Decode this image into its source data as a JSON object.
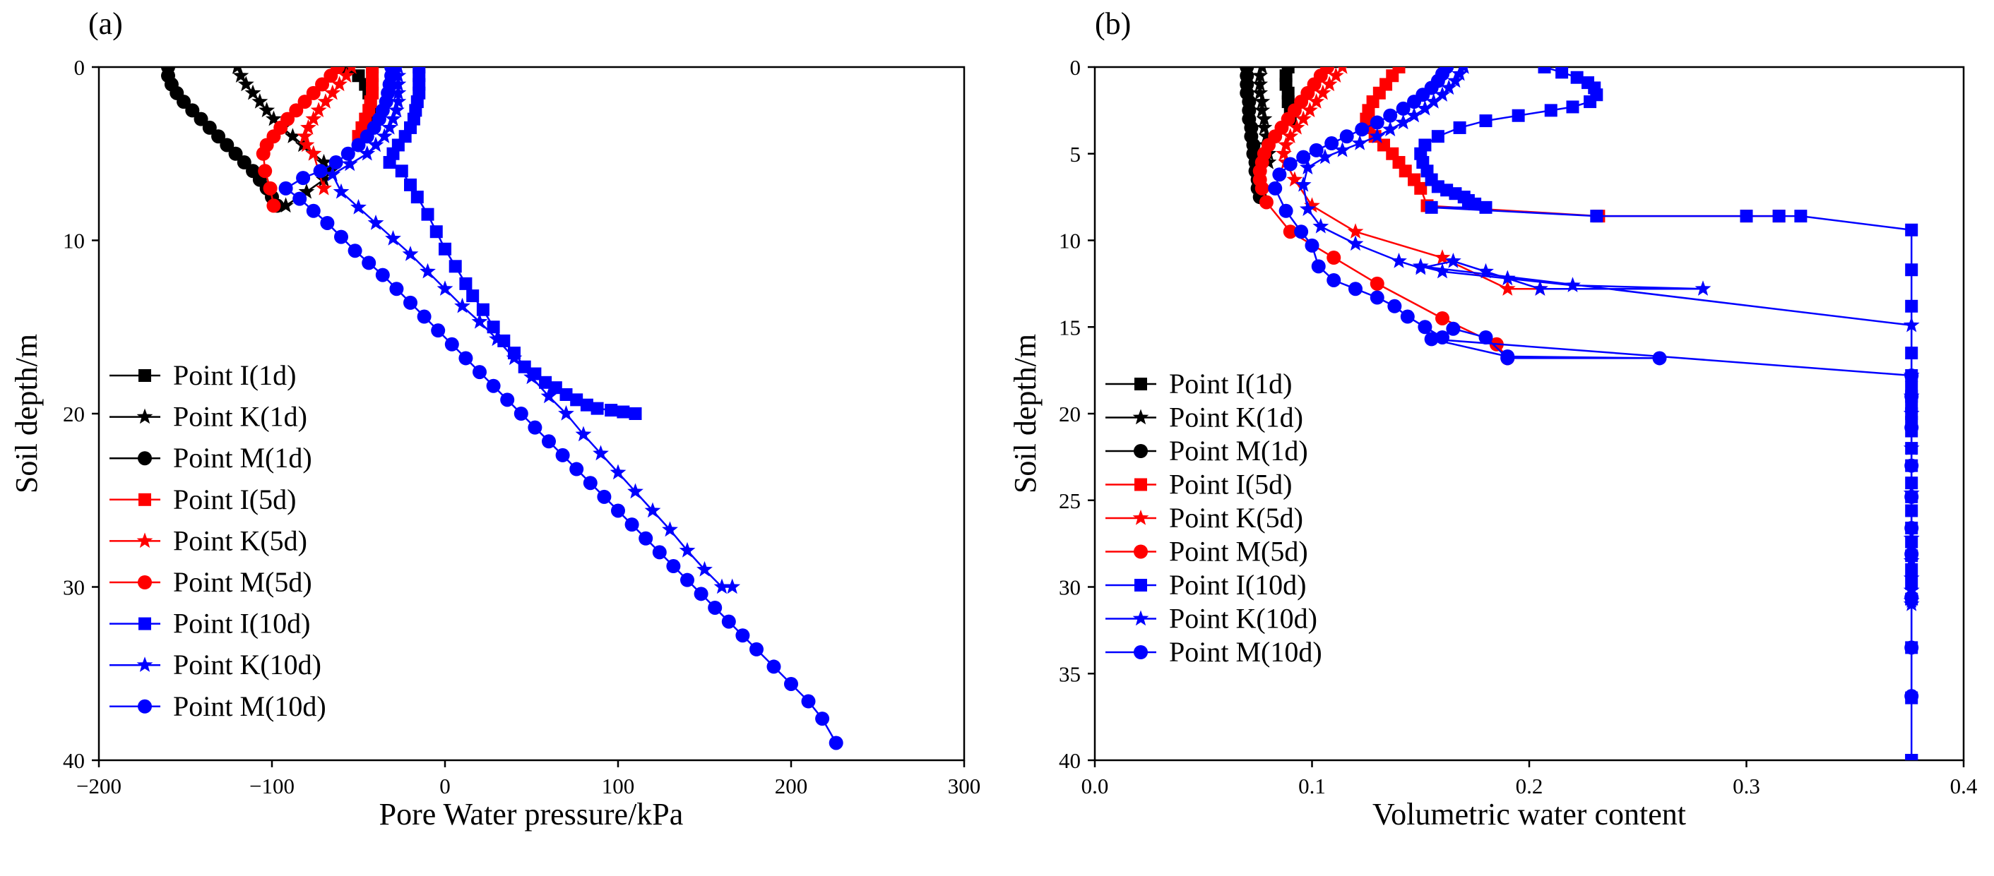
{
  "colors": {
    "d1": "#000000",
    "d5": "#ff0000",
    "d10": "#0000ff"
  },
  "chart_data": [
    {
      "panel": "(a)",
      "type": "line",
      "xlabel": "Pore Water pressure/kPa",
      "ylabel": "Soil depth/m",
      "xlim": [
        -200,
        300
      ],
      "ylim": [
        0,
        40
      ],
      "y_inverted": true,
      "xticks": [
        -200,
        -100,
        0,
        100,
        200,
        300
      ],
      "yticks": [
        0,
        10,
        20,
        30,
        40
      ],
      "xtick_labels": [
        "−200",
        "−100",
        "0",
        "100",
        "200",
        "300"
      ],
      "ytick_labels": [
        "0",
        "10",
        "20",
        "30",
        "40"
      ],
      "legend_position": "lower-left",
      "series": [
        {
          "name": "Point I(1d)",
          "color": "#000000",
          "marker": "square",
          "x": [
            -56,
            -50,
            -46,
            -44,
            -43,
            -43.5,
            -45,
            -47
          ],
          "y": [
            0,
            0.5,
            1,
            1.5,
            2,
            2.5,
            3,
            3.5
          ]
        },
        {
          "name": "Point K(1d)",
          "color": "#000000",
          "marker": "star",
          "x": [
            -120,
            -118,
            -115,
            -111,
            -107,
            -103,
            -99,
            -94,
            -88,
            -82,
            -76,
            -70,
            -66,
            -70,
            -80,
            -92
          ],
          "y": [
            0,
            0.5,
            1,
            1.5,
            2,
            2.5,
            3,
            3.5,
            4,
            4.5,
            5,
            5.5,
            6,
            6.5,
            7.2,
            8
          ]
        },
        {
          "name": "Point M(1d)",
          "color": "#000000",
          "marker": "circle",
          "x": [
            -160,
            -160,
            -158,
            -155,
            -151,
            -146,
            -141,
            -136,
            -131,
            -126,
            -121,
            -116,
            -111,
            -107,
            -103,
            -100,
            -97
          ],
          "y": [
            0,
            0.5,
            1,
            1.5,
            2,
            2.5,
            3,
            3.5,
            4,
            4.5,
            5,
            5.5,
            6,
            6.5,
            7,
            7.5,
            8
          ]
        },
        {
          "name": "Point I(5d)",
          "color": "#ff0000",
          "marker": "square",
          "x": [
            -42,
            -42,
            -42,
            -42,
            -43,
            -44,
            -46,
            -48,
            -50
          ],
          "y": [
            0,
            0.5,
            1,
            1.5,
            2,
            2.5,
            3,
            3.5,
            4
          ]
        },
        {
          "name": "Point K(5d)",
          "color": "#ff0000",
          "marker": "star",
          "x": [
            -54,
            -57,
            -61,
            -65,
            -69,
            -73,
            -76,
            -79,
            -81,
            -80,
            -76,
            -70
          ],
          "y": [
            0,
            0.5,
            1,
            1.5,
            2,
            2.5,
            3,
            3.5,
            4,
            4.5,
            5,
            7
          ]
        },
        {
          "name": "Point M(5d)",
          "color": "#ff0000",
          "marker": "circle",
          "x": [
            -62,
            -66,
            -71,
            -76,
            -81,
            -86,
            -91,
            -95,
            -99,
            -103,
            -105,
            -104,
            -101,
            -99
          ],
          "y": [
            0,
            0.5,
            1,
            1.5,
            2,
            2.5,
            3,
            3.5,
            4,
            4.5,
            5,
            6,
            7,
            8
          ]
        },
        {
          "name": "Point I(10d)",
          "color": "#0000ff",
          "marker": "square",
          "x": [
            -15,
            -15,
            -15,
            -15,
            -16,
            -17,
            -18,
            -20,
            -23,
            -27,
            -30,
            -32,
            -25,
            -20,
            -16,
            -10,
            -5,
            0,
            6,
            12,
            16,
            22,
            28,
            34,
            40,
            46,
            52,
            58,
            64,
            70,
            76,
            82,
            88,
            96,
            103,
            110
          ],
          "y": [
            0,
            0.5,
            1,
            1.5,
            2,
            2.5,
            3,
            3.5,
            4,
            4.5,
            5,
            5.5,
            6,
            6.8,
            7.5,
            8.5,
            9.5,
            10.5,
            11.5,
            12.5,
            13.2,
            14,
            15,
            15.8,
            16.5,
            17.3,
            17.7,
            18.2,
            18.5,
            18.9,
            19.2,
            19.5,
            19.7,
            19.8,
            19.9,
            20
          ]
        },
        {
          "name": "Point K(10d)",
          "color": "#0000ff",
          "marker": "star",
          "x": [
            -27,
            -27,
            -27,
            -27,
            -27,
            -28,
            -30,
            -32,
            -35,
            -40,
            -45,
            -55,
            -65,
            -60,
            -50,
            -40,
            -30,
            -20,
            -10,
            0,
            10,
            20,
            30,
            40,
            50,
            60,
            70,
            80,
            90,
            100,
            110,
            120,
            130,
            140,
            150,
            160,
            166
          ],
          "y": [
            0,
            0.5,
            1,
            1.5,
            2,
            2.5,
            3,
            3.5,
            4,
            4.5,
            5,
            5.6,
            6.2,
            7.2,
            8.1,
            9,
            9.9,
            10.8,
            11.8,
            12.8,
            13.8,
            14.7,
            15.7,
            16.8,
            17.9,
            19,
            20,
            21.2,
            22.3,
            23.4,
            24.5,
            25.6,
            26.7,
            27.9,
            29,
            30,
            30
          ]
        },
        {
          "name": "Point M(10d)",
          "color": "#0000ff",
          "marker": "circle",
          "x": [
            -31,
            -31,
            -32,
            -33,
            -34,
            -36,
            -38,
            -41,
            -45,
            -50,
            -56,
            -63,
            -72,
            -82,
            -92,
            -84,
            -76,
            -68,
            -60,
            -52,
            -44,
            -36,
            -28,
            -20,
            -12,
            -4,
            4,
            12,
            20,
            28,
            36,
            44,
            52,
            60,
            68,
            76,
            84,
            92,
            100,
            108,
            116,
            124,
            132,
            140,
            148,
            156,
            164,
            172,
            180,
            190,
            200,
            210,
            218,
            226
          ],
          "y": [
            0,
            0.5,
            1,
            1.5,
            2,
            2.5,
            3,
            3.5,
            4,
            4.5,
            5,
            5.5,
            6,
            6.4,
            7,
            7.6,
            8.3,
            9,
            9.8,
            10.6,
            11.3,
            12,
            12.8,
            13.6,
            14.4,
            15.2,
            16,
            16.8,
            17.6,
            18.4,
            19.2,
            20,
            20.8,
            21.6,
            22.4,
            23.2,
            24,
            24.8,
            25.6,
            26.4,
            27.2,
            28,
            28.8,
            29.6,
            30.4,
            31.2,
            32,
            32.8,
            33.6,
            34.6,
            35.6,
            36.6,
            37.6,
            39
          ]
        }
      ]
    },
    {
      "panel": "(b)",
      "type": "line",
      "xlabel": "Volumetric water content",
      "ylabel": "Soil depth/m",
      "xlim": [
        0.0,
        0.4
      ],
      "ylim": [
        0,
        40
      ],
      "y_inverted": true,
      "xticks": [
        0.0,
        0.1,
        0.2,
        0.3,
        0.4
      ],
      "yticks": [
        0,
        5,
        10,
        15,
        20,
        25,
        30,
        35,
        40
      ],
      "xtick_labels": [
        "0.0",
        "0.1",
        "0.2",
        "0.3",
        "0.4"
      ],
      "ytick_labels": [
        "0",
        "5",
        "10",
        "15",
        "20",
        "25",
        "30",
        "35",
        "40"
      ],
      "legend_position": "lower-left",
      "series": [
        {
          "name": "Point I(1d)",
          "color": "#000000",
          "marker": "square",
          "x": [
            0.089,
            0.088,
            0.088,
            0.089,
            0.089,
            0.09,
            0.09
          ],
          "y": [
            0,
            0.5,
            1,
            1.5,
            2,
            2.5,
            3
          ]
        },
        {
          "name": "Point K(1d)",
          "color": "#000000",
          "marker": "star",
          "x": [
            0.077,
            0.076,
            0.076,
            0.076,
            0.077,
            0.077,
            0.078,
            0.078,
            0.079,
            0.079,
            0.08,
            0.08
          ],
          "y": [
            0,
            0.5,
            1,
            1.5,
            2,
            2.5,
            3,
            3.5,
            4,
            4.5,
            5,
            5.5
          ]
        },
        {
          "name": "Point M(1d)",
          "color": "#000000",
          "marker": "circle",
          "x": [
            0.07,
            0.07,
            0.07,
            0.07,
            0.071,
            0.071,
            0.071,
            0.072,
            0.072,
            0.073,
            0.073,
            0.074,
            0.074,
            0.075,
            0.075,
            0.076
          ],
          "y": [
            0,
            0.5,
            1,
            1.5,
            2,
            2.5,
            3,
            3.5,
            4,
            4.5,
            5,
            5.5,
            6,
            6.5,
            7,
            7.5
          ]
        },
        {
          "name": "Point I(5d)",
          "color": "#ff0000",
          "marker": "square",
          "x": [
            0.14,
            0.137,
            0.134,
            0.131,
            0.128,
            0.126,
            0.125,
            0.126,
            0.129,
            0.133,
            0.137,
            0.14,
            0.143,
            0.147,
            0.15,
            0.153,
            0.232,
            0.3,
            0.315
          ],
          "y": [
            0,
            0.5,
            1,
            1.5,
            2,
            2.5,
            3,
            3.5,
            4,
            4.5,
            5,
            5.5,
            6,
            6.5,
            7,
            8,
            8.6,
            8.6,
            8.6
          ]
        },
        {
          "name": "Point K(5d)",
          "color": "#ff0000",
          "marker": "star",
          "x": [
            0.114,
            0.111,
            0.108,
            0.105,
            0.102,
            0.099,
            0.096,
            0.093,
            0.09,
            0.088,
            0.087,
            0.088,
            0.092,
            0.1,
            0.12,
            0.16,
            0.19,
            0.205
          ],
          "y": [
            0,
            0.5,
            1,
            1.5,
            2,
            2.5,
            3,
            3.5,
            4,
            4.5,
            5,
            5.5,
            6.5,
            8,
            9.5,
            11,
            12.8,
            12.8
          ]
        },
        {
          "name": "Point M(5d)",
          "color": "#ff0000",
          "marker": "circle",
          "x": [
            0.107,
            0.104,
            0.101,
            0.098,
            0.095,
            0.092,
            0.089,
            0.086,
            0.083,
            0.08,
            0.078,
            0.077,
            0.076,
            0.076,
            0.077,
            0.079,
            0.09,
            0.11,
            0.13,
            0.16,
            0.185,
            0.19
          ],
          "y": [
            0,
            0.5,
            1,
            1.5,
            2,
            2.5,
            3,
            3.5,
            4,
            4.5,
            5,
            5.5,
            6,
            6.5,
            7,
            7.8,
            9.5,
            11,
            12.5,
            14.5,
            16,
            16.8
          ]
        },
        {
          "name": "Point I(10d)",
          "color": "#0000ff",
          "marker": "square",
          "x": [
            0.207,
            0.215,
            0.222,
            0.227,
            0.23,
            0.231,
            0.228,
            0.22,
            0.21,
            0.195,
            0.18,
            0.168,
            0.158,
            0.152,
            0.15,
            0.151,
            0.153,
            0.155,
            0.158,
            0.162,
            0.166,
            0.17,
            0.172,
            0.175,
            0.18,
            0.155,
            0.231,
            0.3,
            0.315,
            0.325,
            0.376,
            0.376,
            0.376,
            0.376,
            0.376,
            0.376,
            0.376,
            0.376,
            0.376,
            0.376,
            0.376,
            0.376,
            0.376,
            0.376,
            0.376,
            0.376,
            0.376,
            0.376,
            0.376,
            0.376,
            0.376,
            0.376,
            0.376,
            0.376,
            0.376,
            0.376
          ],
          "y": [
            0,
            0.3,
            0.6,
            0.9,
            1.2,
            1.6,
            2,
            2.3,
            2.5,
            2.8,
            3.1,
            3.5,
            4,
            4.5,
            5,
            5.5,
            6,
            6.5,
            6.9,
            7.1,
            7.3,
            7.5,
            7.7,
            7.9,
            8.1,
            8.1,
            8.6,
            8.6,
            8.6,
            8.6,
            9.4,
            11.7,
            13.8,
            16.5,
            17.8,
            18.5,
            19,
            19.5,
            20,
            20.5,
            21,
            22,
            23,
            24,
            24.8,
            25.6,
            26.6,
            27.4,
            28.2,
            29,
            29.8,
            30.7,
            33.5,
            36.4,
            40,
            40
          ]
        },
        {
          "name": "Point K(10d)",
          "color": "#0000ff",
          "marker": "star",
          "x": [
            0.17,
            0.168,
            0.166,
            0.163,
            0.16,
            0.156,
            0.152,
            0.147,
            0.142,
            0.136,
            0.13,
            0.122,
            0.114,
            0.106,
            0.098,
            0.096,
            0.098,
            0.104,
            0.12,
            0.14,
            0.15,
            0.165,
            0.18,
            0.205,
            0.28,
            0.22,
            0.19,
            0.16,
            0.15,
            0.376,
            0.376,
            0.376,
            0.376,
            0.376,
            0.376,
            0.376,
            0.376,
            0.376,
            0.376,
            0.376,
            0.376
          ],
          "y": [
            0,
            0.4,
            0.8,
            1.2,
            1.6,
            2,
            2.4,
            2.8,
            3.2,
            3.6,
            4,
            4.4,
            4.8,
            5.2,
            5.8,
            6.8,
            8.2,
            9.2,
            10.2,
            11.2,
            11.6,
            11.2,
            11.8,
            12.8,
            12.8,
            12.6,
            12.2,
            11.8,
            11.5,
            14.9,
            17.8,
            19,
            20,
            22,
            24.6,
            27.2,
            28.5,
            29.5,
            30.2,
            30.8,
            31
          ]
        },
        {
          "name": "Point M(10d)",
          "color": "#0000ff",
          "marker": "circle",
          "x": [
            0.162,
            0.16,
            0.158,
            0.155,
            0.151,
            0.147,
            0.142,
            0.136,
            0.13,
            0.123,
            0.116,
            0.109,
            0.102,
            0.096,
            0.09,
            0.085,
            0.083,
            0.088,
            0.095,
            0.1,
            0.103,
            0.11,
            0.12,
            0.13,
            0.138,
            0.144,
            0.152,
            0.16,
            0.165,
            0.18,
            0.19,
            0.26,
            0.19,
            0.155,
            0.376,
            0.376,
            0.376,
            0.376,
            0.376,
            0.376,
            0.376,
            0.376,
            0.376,
            0.376
          ],
          "y": [
            0,
            0.4,
            0.8,
            1.2,
            1.6,
            2,
            2.4,
            2.8,
            3.2,
            3.6,
            4,
            4.4,
            4.8,
            5.2,
            5.6,
            6.2,
            7,
            8.3,
            9.5,
            10.3,
            11.5,
            12.3,
            12.8,
            13.3,
            13.8,
            14.4,
            15,
            15.6,
            15.1,
            15.6,
            16.8,
            16.8,
            16.7,
            15.7,
            17.8,
            19,
            20.8,
            23,
            24.8,
            26.6,
            28.1,
            30.6,
            33.5,
            36.3
          ]
        }
      ]
    }
  ]
}
